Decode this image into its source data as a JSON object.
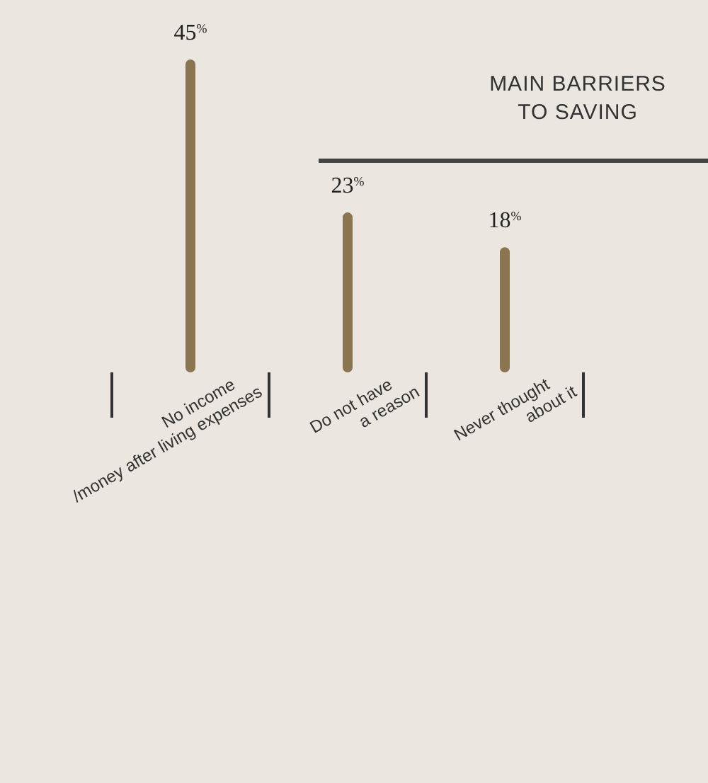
{
  "chart_data": {
    "type": "bar",
    "title": "MAIN BARRIERS\nTO SAVING",
    "categories": [
      "No income\n/money after living expenses",
      "Do not have\na reason",
      "Never thought\nabout it"
    ],
    "values": [
      45,
      23,
      18
    ],
    "value_labels": [
      "45$^{%}$",
      "23$^{%}$",
      "18$^{%}$"
    ],
    "color": "#8b7550"
  }
}
